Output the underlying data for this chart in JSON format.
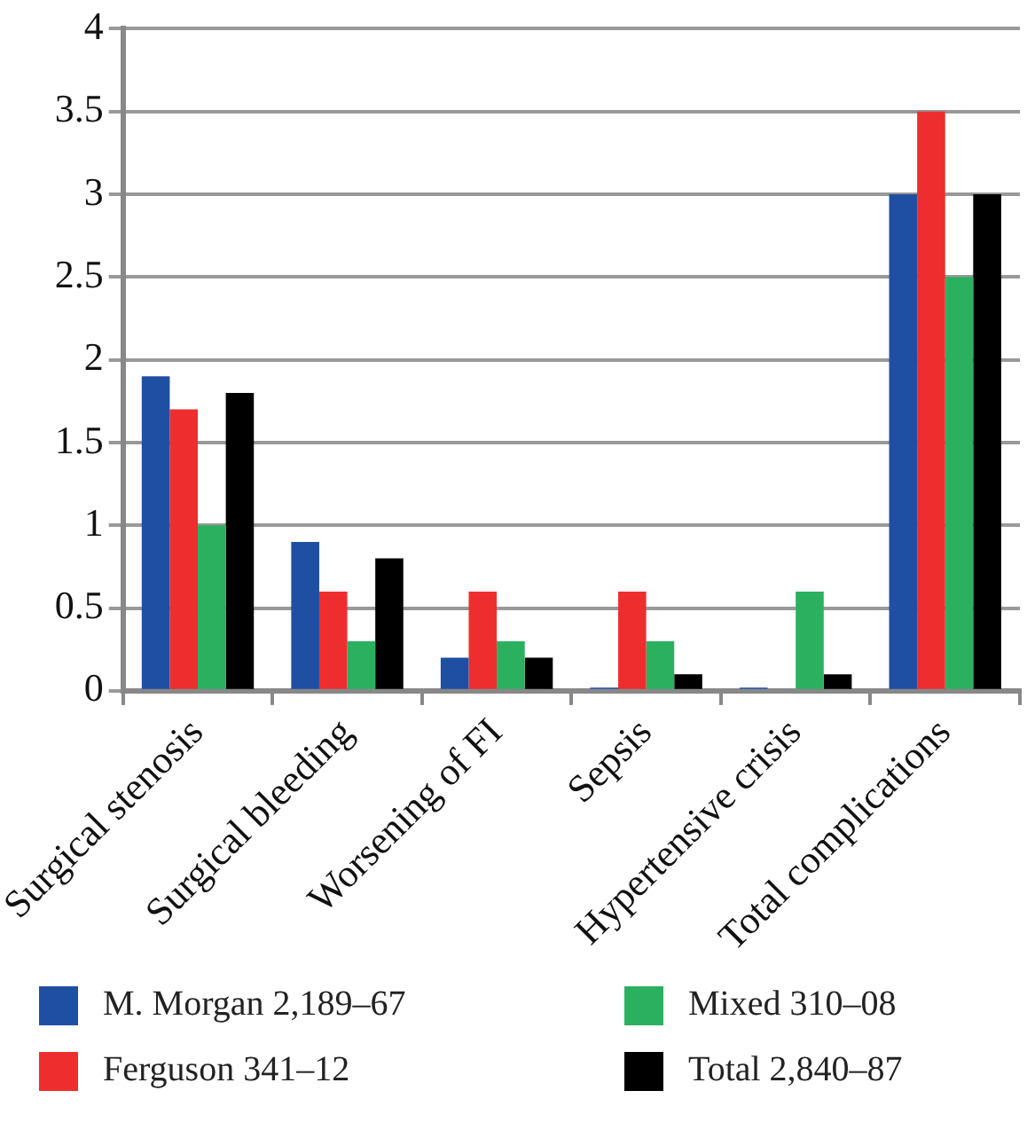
{
  "chart_data": {
    "type": "bar",
    "categories": [
      "Surgical stenosis",
      "Surgical bleeding",
      "Worsening of FI",
      "Sepsis",
      "Hypertensive crisis",
      "Total complications"
    ],
    "series": [
      {
        "name": "M. Morgan 2,189–67",
        "color": "#1f4fa3",
        "values": [
          1.9,
          0.9,
          0.2,
          0.02,
          0.02,
          3
        ]
      },
      {
        "name": "Ferguson 341–12",
        "color": "#ee2e2e",
        "values": [
          1.7,
          0.6,
          0.6,
          0.6,
          0,
          3.5
        ]
      },
      {
        "name": "Mixed 310–08",
        "color": "#2bb060",
        "values": [
          1,
          0.3,
          0.3,
          0.3,
          0.6,
          2.5
        ]
      },
      {
        "name": "Total 2,840–87",
        "color": "#000000",
        "values": [
          1.8,
          0.8,
          0.2,
          0.1,
          0.1,
          3
        ]
      }
    ],
    "ylim": [
      0,
      4
    ],
    "yticks": [
      0,
      0.5,
      1,
      1.5,
      2,
      2.5,
      3,
      3.5,
      4
    ],
    "grid": "y",
    "legend": "bottom"
  }
}
